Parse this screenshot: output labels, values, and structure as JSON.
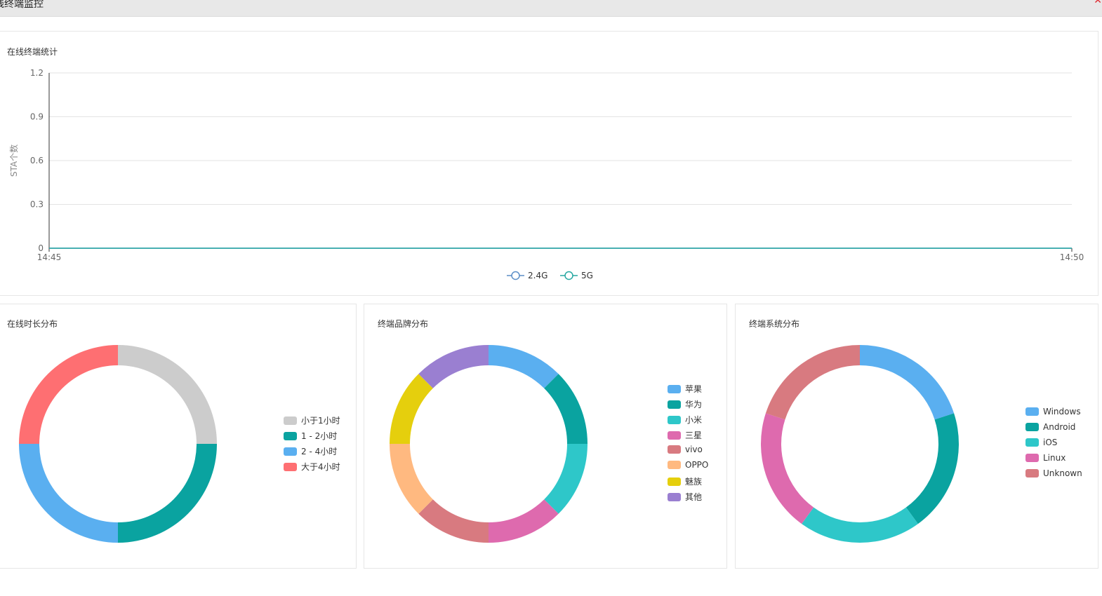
{
  "window": {
    "title": "线终端监控",
    "close_icon": "close-icon"
  },
  "line_panel": {
    "title": "在线终端统计",
    "chart_data": {
      "type": "line",
      "ylabel": "STA个数",
      "xlabel": "",
      "x": [
        "14:45",
        "14:50"
      ],
      "y_ticks": [
        "0",
        "0.3",
        "0.6",
        "0.9",
        "1.2"
      ],
      "ylim": [
        0,
        1.2
      ],
      "grid": true,
      "legend_position": "bottom-center",
      "series": [
        {
          "name": "2.4G",
          "values": [
            0,
            0
          ],
          "color": "#5b8ec7"
        },
        {
          "name": "5G",
          "values": [
            0,
            0
          ],
          "color": "#26a7a1"
        }
      ]
    }
  },
  "duration_panel": {
    "title": "在线时长分布",
    "chart_data": {
      "type": "pie",
      "categories": [
        "小于1小时",
        "1 - 2小时",
        "2 - 4小时",
        "大于4小时"
      ],
      "values": [
        25,
        25,
        25,
        25
      ],
      "colors": [
        "#cccccc",
        "#0aa3a0",
        "#5aaff0",
        "#fe6f72"
      ],
      "legend_position": "right"
    }
  },
  "brand_panel": {
    "title": "终端品牌分布",
    "chart_data": {
      "type": "pie",
      "categories": [
        "苹果",
        "华为",
        "小米",
        "三星",
        "vivo",
        "OPPO",
        "魅族",
        "其他"
      ],
      "values": [
        12.5,
        12.5,
        12.5,
        12.5,
        12.5,
        12.5,
        12.5,
        12.5
      ],
      "colors": [
        "#5aaff0",
        "#0aa3a0",
        "#2ec7c9",
        "#de6aae",
        "#d87a80",
        "#ffb980",
        "#e5cf0d",
        "#9a7fd1"
      ],
      "legend_position": "right"
    }
  },
  "os_panel": {
    "title": "终端系统分布",
    "chart_data": {
      "type": "pie",
      "categories": [
        "Windows",
        "Android",
        "iOS",
        "Linux",
        "Unknown"
      ],
      "values": [
        20,
        20,
        20,
        20,
        20
      ],
      "colors": [
        "#5aaff0",
        "#0aa3a0",
        "#2ec7c9",
        "#de6aae",
        "#d87a80"
      ],
      "legend_position": "right"
    }
  }
}
